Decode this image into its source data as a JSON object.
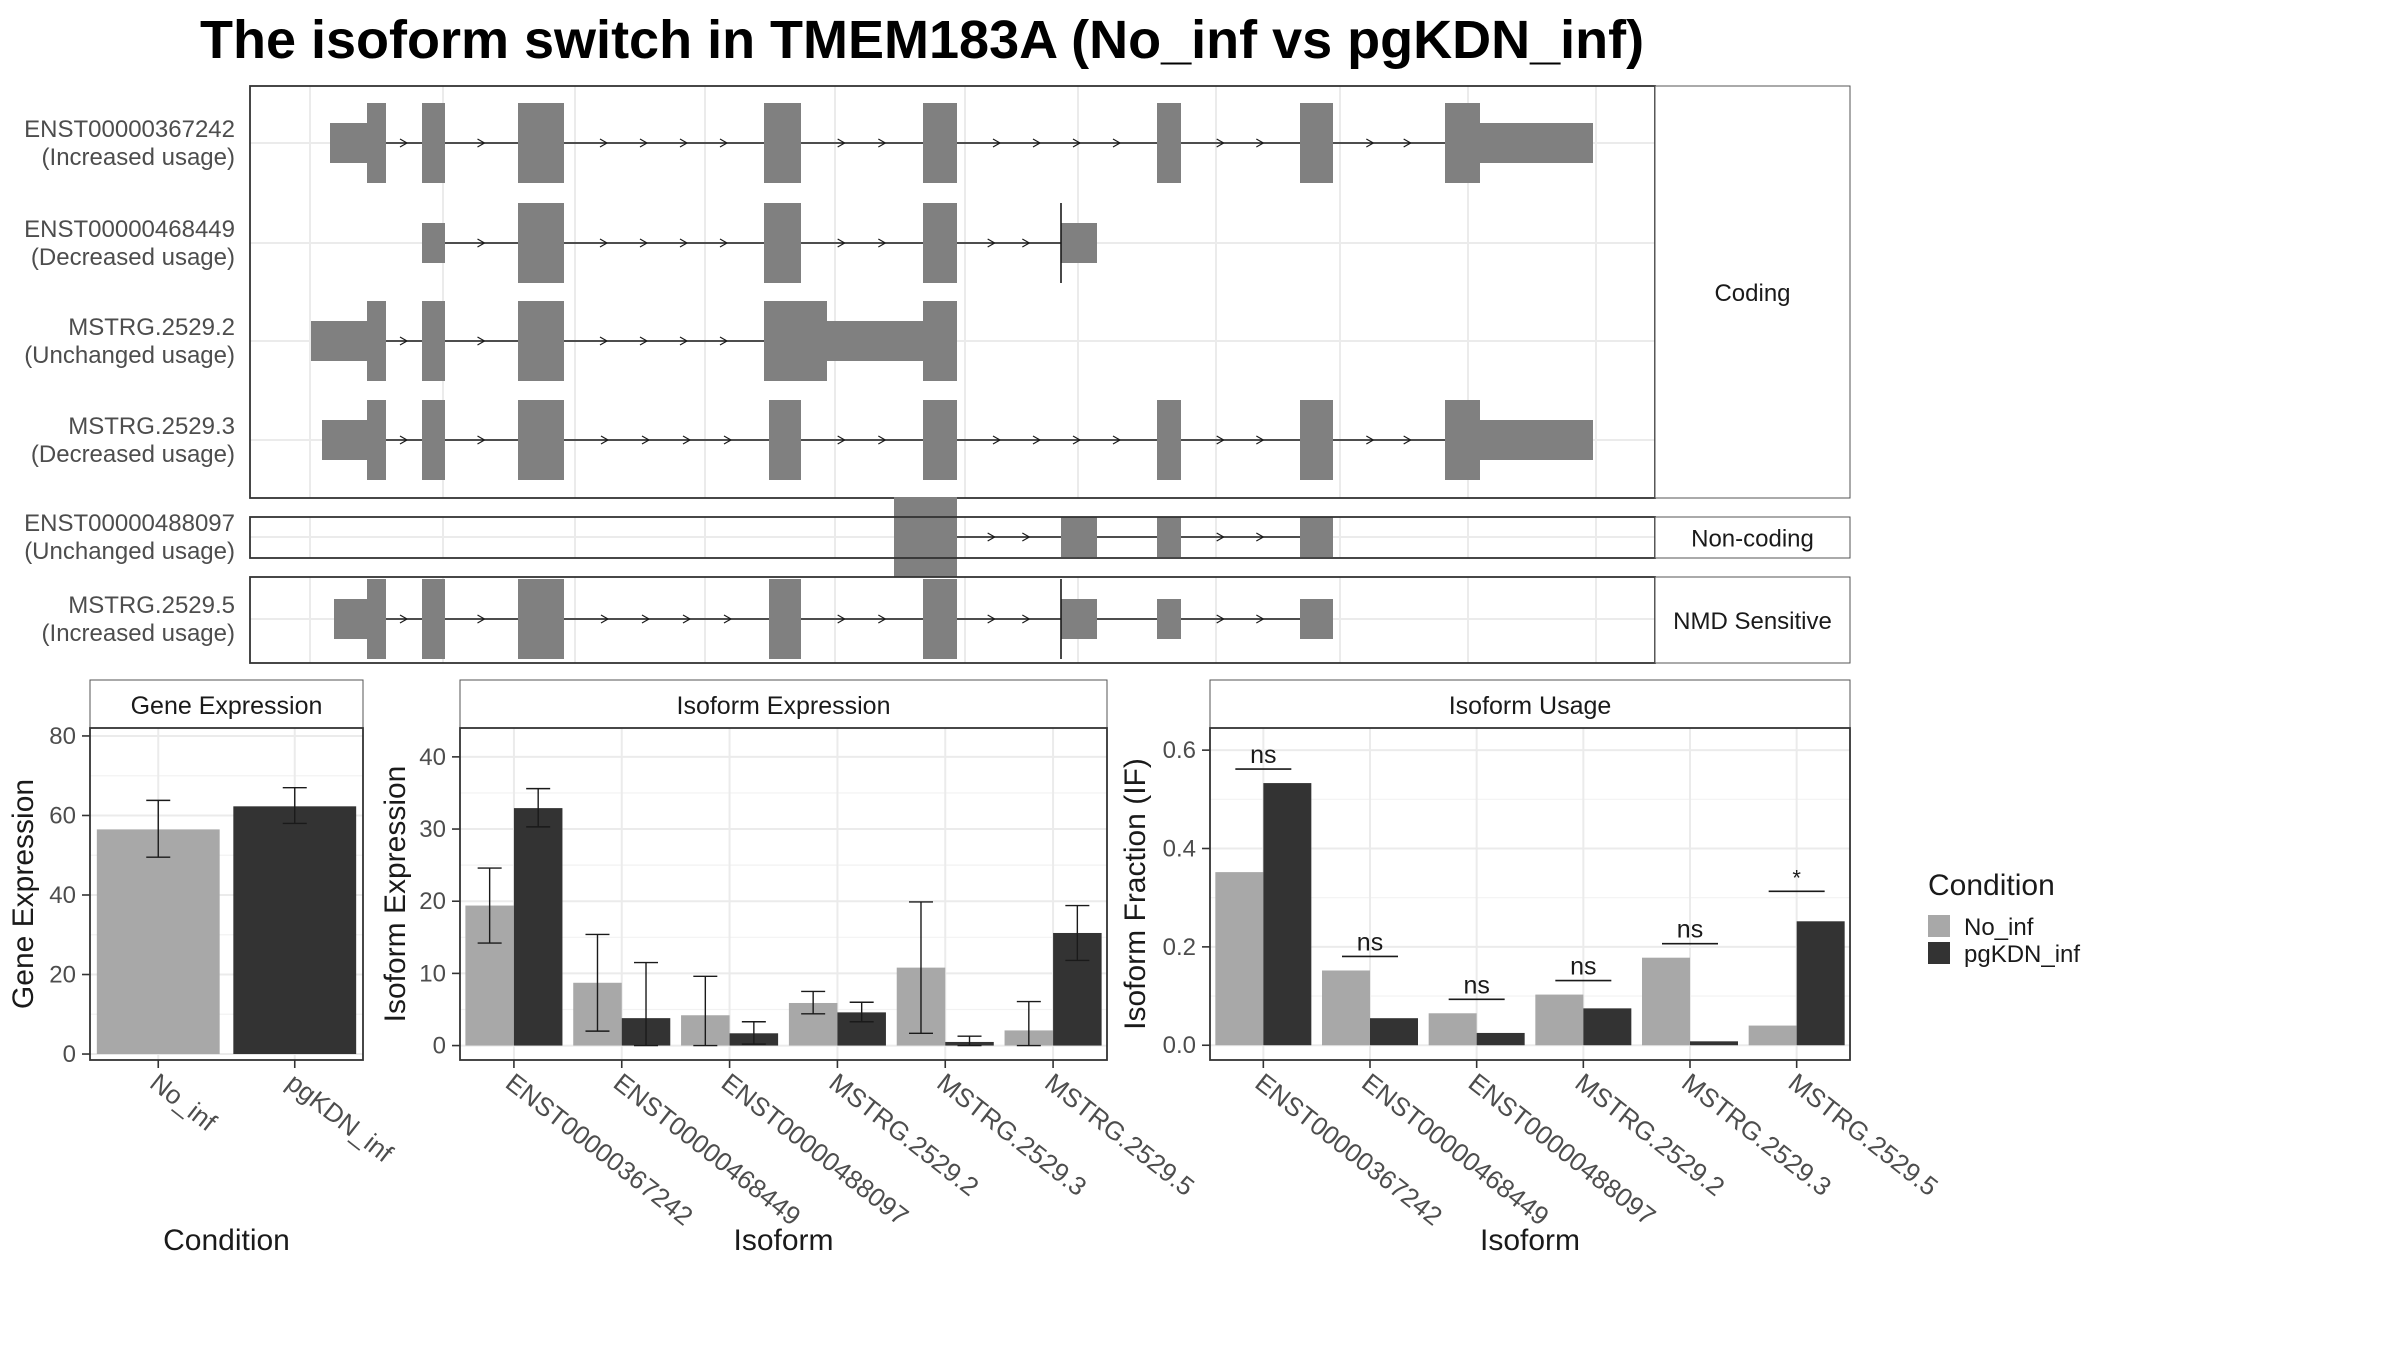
{
  "title": "The isoform switch in TMEM183A (No_inf vs pgKDN_inf)",
  "colors": {
    "feature": "#808080",
    "No_inf": "#a8a8a8",
    "pgKDN_inf": "#333333",
    "grid": "#ebebeb",
    "strip": "#ffffff",
    "panel_border": "#333333"
  },
  "structure_panel": {
    "groups": [
      {
        "label": "Coding",
        "isoforms": [
          {
            "name": "ENST00000367242",
            "usage": "(Increased usage)"
          },
          {
            "name": "ENST00000468449",
            "usage": "(Decreased usage)"
          },
          {
            "name": "MSTRG.2529.2",
            "usage": "(Unchanged usage)"
          },
          {
            "name": "MSTRG.2529.3",
            "usage": "(Decreased usage)"
          }
        ]
      },
      {
        "label": "Non-coding",
        "isoforms": [
          {
            "name": "ENST00000488097",
            "usage": "(Unchanged usage)"
          }
        ]
      },
      {
        "label": "NMD Sensitive",
        "isoforms": [
          {
            "name": "MSTRG.2529.5",
            "usage": "(Increased usage)"
          }
        ]
      }
    ]
  },
  "chart_data": [
    {
      "type": "bar",
      "strip_title": "Gene Expression",
      "xlabel": "Condition",
      "ylabel": "Gene Expression",
      "categories": [
        "No_inf",
        "pgKDN_inf"
      ],
      "values": [
        56.5,
        62.3
      ],
      "error_low": [
        49.5,
        58.0
      ],
      "error_high": [
        63.8,
        67.0
      ],
      "ylim": [
        -1.5,
        82
      ],
      "yticks": [
        0,
        20,
        40,
        60,
        80
      ],
      "grid": true
    },
    {
      "type": "bar",
      "strip_title": "Isoform Expression",
      "xlabel": "Isoform",
      "ylabel": "Isoform Expression",
      "categories": [
        "ENST00000367242",
        "ENST00000468449",
        "ENST00000488097",
        "MSTRG.2529.2",
        "MSTRG.2529.3",
        "MSTRG.2529.5"
      ],
      "series": [
        {
          "name": "No_inf",
          "values": [
            19.4,
            8.7,
            4.2,
            5.9,
            10.8,
            2.1
          ],
          "error_low": [
            14.2,
            2.0,
            0.0,
            4.4,
            1.7,
            0.0
          ],
          "error_high": [
            24.6,
            15.4,
            9.6,
            7.5,
            19.9,
            6.1
          ]
        },
        {
          "name": "pgKDN_inf",
          "values": [
            32.9,
            3.8,
            1.7,
            4.6,
            0.5,
            15.6
          ],
          "error_low": [
            30.3,
            0.0,
            0.2,
            3.3,
            0.0,
            11.8
          ],
          "error_high": [
            35.6,
            11.5,
            3.3,
            6.0,
            1.3,
            19.4
          ]
        }
      ],
      "ylim": [
        -2,
        44
      ],
      "yticks": [
        0,
        10,
        20,
        30,
        40
      ],
      "grid": true
    },
    {
      "type": "bar",
      "strip_title": "Isoform Usage",
      "xlabel": "Isoform",
      "ylabel": "Isoform Fraction (IF)",
      "categories": [
        "ENST00000367242",
        "ENST00000468449",
        "ENST00000488097",
        "MSTRG.2529.2",
        "MSTRG.2529.3",
        "MSTRG.2529.5"
      ],
      "series": [
        {
          "name": "No_inf",
          "values": [
            0.352,
            0.152,
            0.065,
            0.103,
            0.178,
            0.04
          ]
        },
        {
          "name": "pgKDN_inf",
          "values": [
            0.533,
            0.055,
            0.025,
            0.075,
            0.008,
            0.252
          ]
        }
      ],
      "significance": [
        "ns",
        "ns",
        "ns",
        "ns",
        "ns",
        "*"
      ],
      "ylim": [
        -0.03,
        0.645
      ],
      "yticks": [
        0.0,
        0.2,
        0.4,
        0.6
      ],
      "grid": true
    }
  ],
  "legend": {
    "title": "Condition",
    "items": [
      "No_inf",
      "pgKDN_inf"
    ],
    "position": "right"
  }
}
